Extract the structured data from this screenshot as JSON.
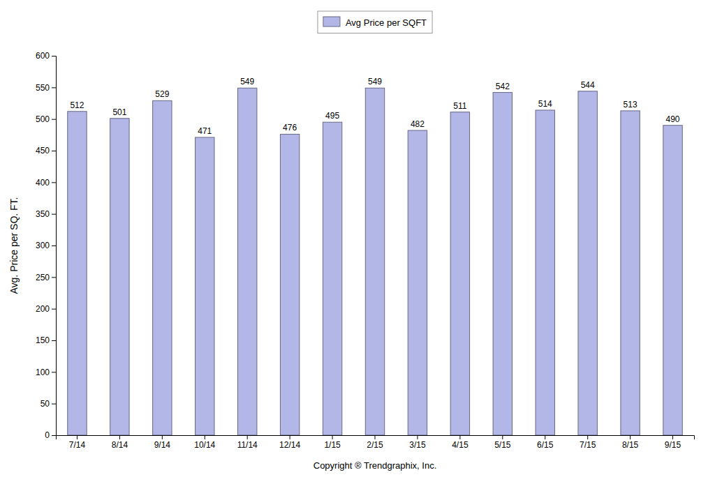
{
  "chart_data": {
    "type": "bar",
    "categories": [
      "7/14",
      "8/14",
      "9/14",
      "10/14",
      "11/14",
      "12/14",
      "1/15",
      "2/15",
      "3/15",
      "4/15",
      "5/15",
      "6/15",
      "7/15",
      "8/15",
      "9/15"
    ],
    "series": [
      {
        "name": "Avg Price per SQFT",
        "color": "#b3b7e8",
        "values": [
          512,
          501,
          529,
          471,
          549,
          476,
          495,
          549,
          482,
          511,
          542,
          514,
          544,
          513,
          490
        ]
      }
    ],
    "xlabel": "Copyright ® Trendgraphix, Inc.",
    "ylabel": "Avg. Price per SQ. FT.",
    "ylim": [
      0,
      600
    ],
    "yticks": [
      0,
      50,
      100,
      150,
      200,
      250,
      300,
      350,
      400,
      450,
      500,
      550,
      600
    ],
    "grid": false,
    "legend": "top",
    "data_labels": true
  }
}
